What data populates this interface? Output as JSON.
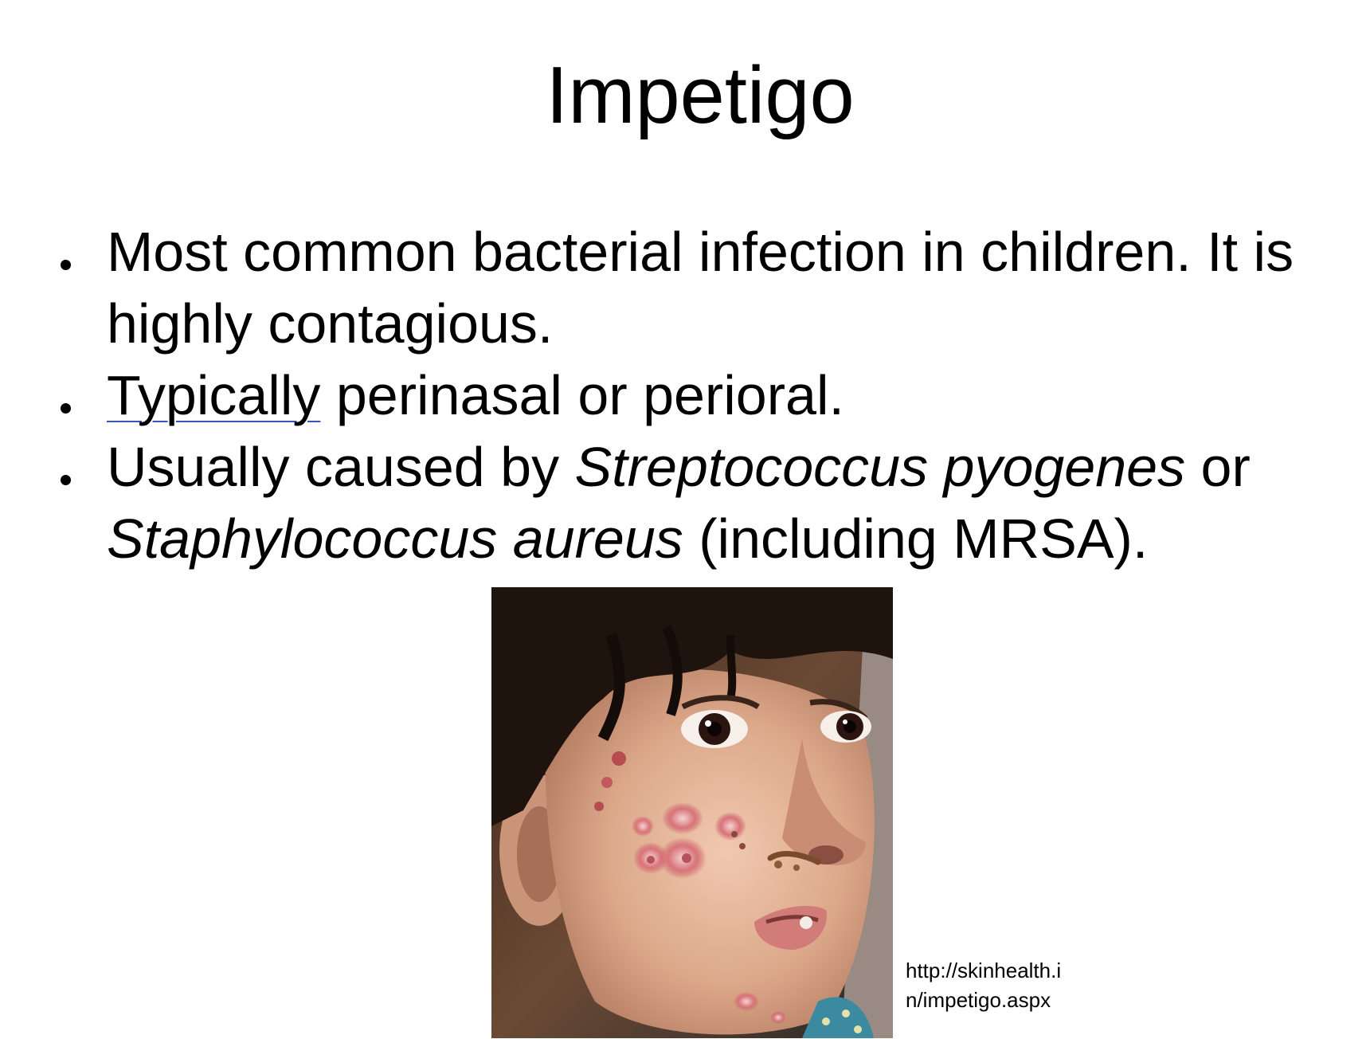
{
  "slide": {
    "title": "Impetigo",
    "bullets": [
      {
        "segments": [
          {
            "text": "Most common bacterial infection in children.  It is highly contagious.",
            "style": "normal"
          }
        ]
      },
      {
        "segments": [
          {
            "text": "Typically",
            "style": "spellcheck-underline"
          },
          {
            "text": " perinasal or perioral.",
            "style": "normal"
          }
        ]
      },
      {
        "segments": [
          {
            "text": "Usually caused by ",
            "style": "normal"
          },
          {
            "text": "Streptococcus pyogenes",
            "style": "italic"
          },
          {
            "text": " or ",
            "style": "normal"
          },
          {
            "text": "Staphylococcus aureus",
            "style": "italic"
          },
          {
            "text": " (including MRSA).",
            "style": "normal"
          }
        ]
      }
    ],
    "image_credit": "http://skinhealth.i\nn/impetigo.aspx",
    "colors": {
      "background": "#ffffff",
      "text": "#000000",
      "spellcheck_underline": "#3a55b8"
    }
  }
}
